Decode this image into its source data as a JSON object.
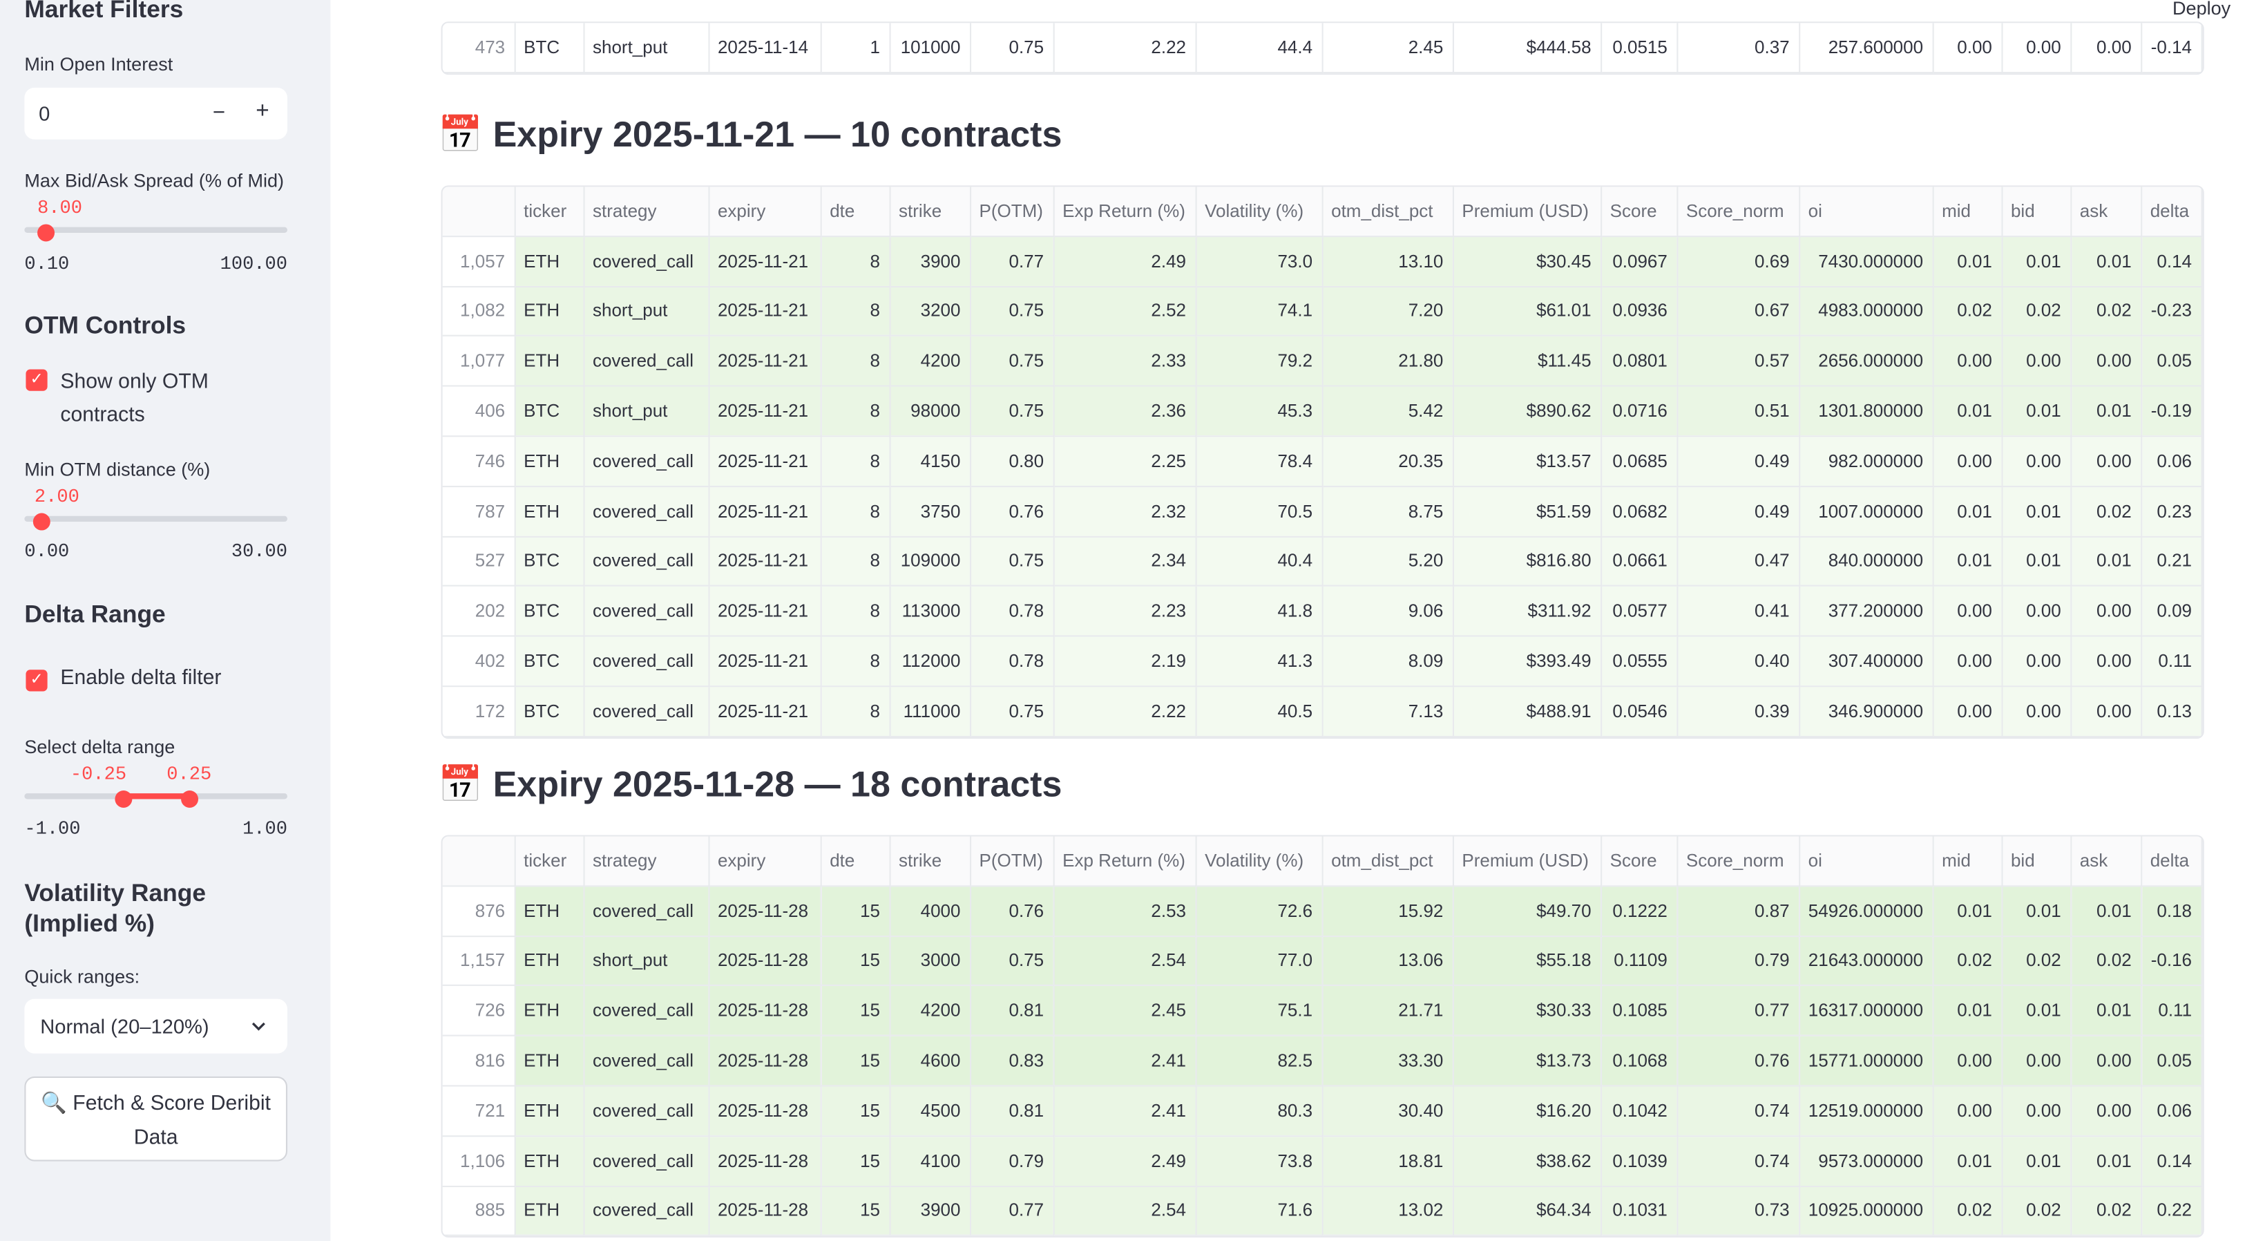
{
  "sidebar": {
    "market_filters_title": "Market Filters",
    "min_oi_label": "Min Open Interest",
    "min_oi_value": "0",
    "minus": "−",
    "plus": "+",
    "spread_label": "Max Bid/Ask Spread (% of Mid)",
    "spread_value": "8.00",
    "spread_min": "0.10",
    "spread_max": "100.00",
    "otm_title": "OTM Controls",
    "otm_checkbox": "Show only OTM contracts",
    "min_otm_label": "Min OTM distance (%)",
    "min_otm_value": "2.00",
    "min_otm_min": "0.00",
    "min_otm_max": "30.00",
    "delta_title": "Delta Range",
    "delta_checkbox": "Enable delta filter",
    "delta_range_label": "Select delta range",
    "delta_low": "-0.25",
    "delta_high": "0.25",
    "delta_min": "-1.00",
    "delta_max": "1.00",
    "vol_title": "Volatility Range (Implied %)",
    "quick_label": "Quick ranges:",
    "quick_value": "Normal (20–120%)",
    "button": "🔍 Fetch & Score Deribit Data"
  },
  "header": {
    "deploy": "Deploy"
  },
  "columns": [
    "ticker",
    "strategy",
    "expiry",
    "dte",
    "strike",
    "P(OTM)",
    "Exp Return (%)",
    "Volatility (%)",
    "otm_dist_pct",
    "Premium (USD)",
    "Score",
    "Score_norm",
    "oi",
    "mid",
    "bid",
    "ask",
    "delta"
  ],
  "top_table": {
    "rows": [
      [
        "473",
        "BTC",
        "short_put",
        "2025-11-14",
        "1",
        "101000",
        "0.75",
        "2.22",
        "44.4",
        "2.45",
        "$444.58",
        "0.0515",
        "0.37",
        "257.600000",
        "0.00",
        "0.00",
        "0.00",
        "-0.14"
      ]
    ]
  },
  "sections": [
    {
      "title": "📅 Expiry 2025-11-21 — 10 contracts",
      "rows": [
        [
          "1,057",
          "ETH",
          "covered_call",
          "2025-11-21",
          "8",
          "3900",
          "0.77",
          "2.49",
          "73.0",
          "13.10",
          "$30.45",
          "0.0967",
          "0.69",
          "7430.000000",
          "0.01",
          "0.01",
          "0.01",
          "0.14"
        ],
        [
          "1,082",
          "ETH",
          "short_put",
          "2025-11-21",
          "8",
          "3200",
          "0.75",
          "2.52",
          "74.1",
          "7.20",
          "$61.01",
          "0.0936",
          "0.67",
          "4983.000000",
          "0.02",
          "0.02",
          "0.02",
          "-0.23"
        ],
        [
          "1,077",
          "ETH",
          "covered_call",
          "2025-11-21",
          "8",
          "4200",
          "0.75",
          "2.33",
          "79.2",
          "21.80",
          "$11.45",
          "0.0801",
          "0.57",
          "2656.000000",
          "0.00",
          "0.00",
          "0.00",
          "0.05"
        ],
        [
          "406",
          "BTC",
          "short_put",
          "2025-11-21",
          "8",
          "98000",
          "0.75",
          "2.36",
          "45.3",
          "5.42",
          "$890.62",
          "0.0716",
          "0.51",
          "1301.800000",
          "0.01",
          "0.01",
          "0.01",
          "-0.19"
        ],
        [
          "746",
          "ETH",
          "covered_call",
          "2025-11-21",
          "8",
          "4150",
          "0.80",
          "2.25",
          "78.4",
          "20.35",
          "$13.57",
          "0.0685",
          "0.49",
          "982.000000",
          "0.00",
          "0.00",
          "0.00",
          "0.06"
        ],
        [
          "787",
          "ETH",
          "covered_call",
          "2025-11-21",
          "8",
          "3750",
          "0.76",
          "2.32",
          "70.5",
          "8.75",
          "$51.59",
          "0.0682",
          "0.49",
          "1007.000000",
          "0.01",
          "0.01",
          "0.02",
          "0.23"
        ],
        [
          "527",
          "BTC",
          "covered_call",
          "2025-11-21",
          "8",
          "109000",
          "0.75",
          "2.34",
          "40.4",
          "5.20",
          "$816.80",
          "0.0661",
          "0.47",
          "840.000000",
          "0.01",
          "0.01",
          "0.01",
          "0.21"
        ],
        [
          "202",
          "BTC",
          "covered_call",
          "2025-11-21",
          "8",
          "113000",
          "0.78",
          "2.23",
          "41.8",
          "9.06",
          "$311.92",
          "0.0577",
          "0.41",
          "377.200000",
          "0.00",
          "0.00",
          "0.00",
          "0.09"
        ],
        [
          "402",
          "BTC",
          "covered_call",
          "2025-11-21",
          "8",
          "112000",
          "0.78",
          "2.19",
          "41.3",
          "8.09",
          "$393.49",
          "0.0555",
          "0.40",
          "307.400000",
          "0.00",
          "0.00",
          "0.00",
          "0.11"
        ],
        [
          "172",
          "BTC",
          "covered_call",
          "2025-11-21",
          "8",
          "111000",
          "0.75",
          "2.22",
          "40.5",
          "7.13",
          "$488.91",
          "0.0546",
          "0.39",
          "346.900000",
          "0.00",
          "0.00",
          "0.00",
          "0.13"
        ]
      ]
    },
    {
      "title": "📅 Expiry 2025-11-28 — 18 contracts",
      "rows": [
        [
          "876",
          "ETH",
          "covered_call",
          "2025-11-28",
          "15",
          "4000",
          "0.76",
          "2.53",
          "72.6",
          "15.92",
          "$49.70",
          "0.1222",
          "0.87",
          "54926.000000",
          "0.01",
          "0.01",
          "0.01",
          "0.18"
        ],
        [
          "1,157",
          "ETH",
          "short_put",
          "2025-11-28",
          "15",
          "3000",
          "0.75",
          "2.54",
          "77.0",
          "13.06",
          "$55.18",
          "0.1109",
          "0.79",
          "21643.000000",
          "0.02",
          "0.02",
          "0.02",
          "-0.16"
        ],
        [
          "726",
          "ETH",
          "covered_call",
          "2025-11-28",
          "15",
          "4200",
          "0.81",
          "2.45",
          "75.1",
          "21.71",
          "$30.33",
          "0.1085",
          "0.77",
          "16317.000000",
          "0.01",
          "0.01",
          "0.01",
          "0.11"
        ],
        [
          "816",
          "ETH",
          "covered_call",
          "2025-11-28",
          "15",
          "4600",
          "0.83",
          "2.41",
          "82.5",
          "33.30",
          "$13.73",
          "0.1068",
          "0.76",
          "15771.000000",
          "0.00",
          "0.00",
          "0.00",
          "0.05"
        ],
        [
          "721",
          "ETH",
          "covered_call",
          "2025-11-28",
          "15",
          "4500",
          "0.81",
          "2.41",
          "80.3",
          "30.40",
          "$16.20",
          "0.1042",
          "0.74",
          "12519.000000",
          "0.00",
          "0.00",
          "0.00",
          "0.06"
        ],
        [
          "1,106",
          "ETH",
          "covered_call",
          "2025-11-28",
          "15",
          "4100",
          "0.79",
          "2.49",
          "73.8",
          "18.81",
          "$38.62",
          "0.1039",
          "0.74",
          "9573.000000",
          "0.01",
          "0.01",
          "0.01",
          "0.14"
        ],
        [
          "885",
          "ETH",
          "covered_call",
          "2025-11-28",
          "15",
          "3900",
          "0.77",
          "2.54",
          "71.6",
          "13.02",
          "$64.34",
          "0.1031",
          "0.73",
          "10925.000000",
          "0.02",
          "0.02",
          "0.02",
          "0.22"
        ]
      ]
    }
  ]
}
